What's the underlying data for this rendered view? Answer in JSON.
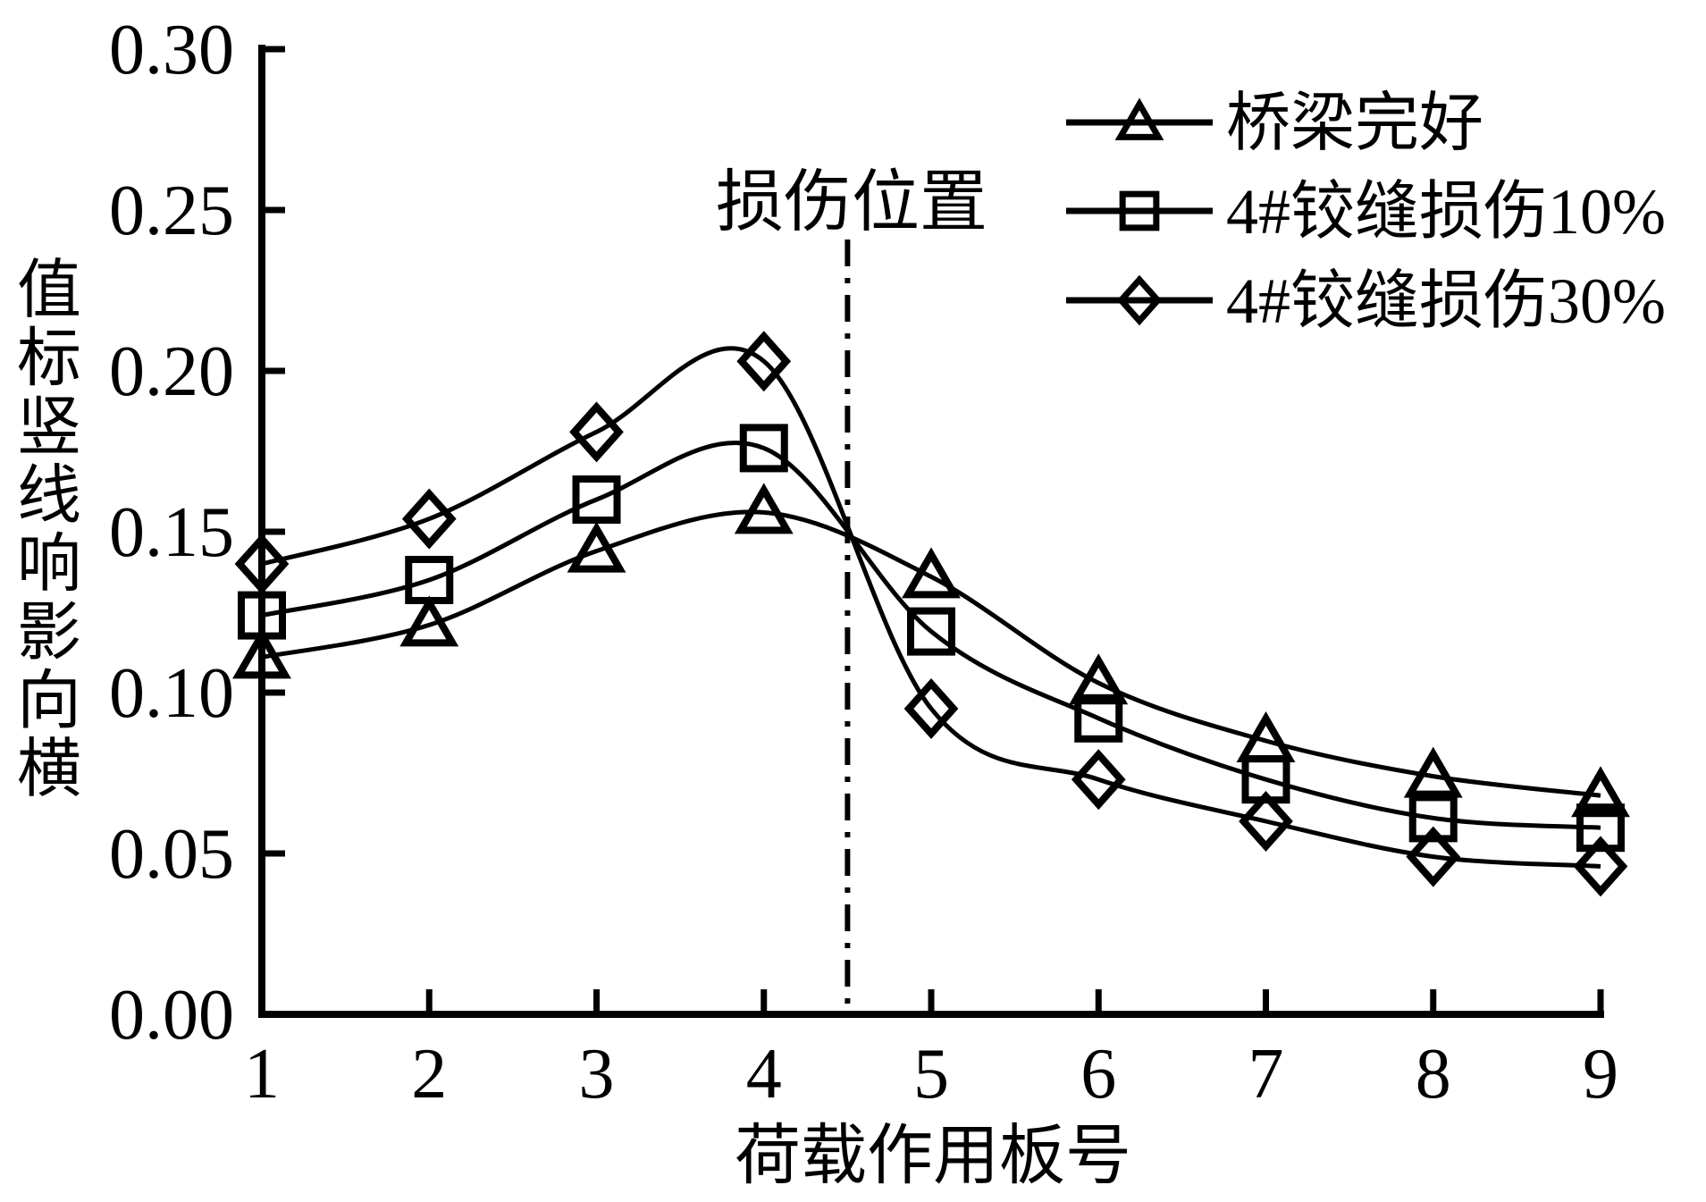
{
  "figure": {
    "background": "#ffffff",
    "ink": "#000000"
  },
  "chart_data": {
    "type": "line",
    "title": "",
    "xlabel": "荷载作用板号",
    "ylabel": "横向影响线竖标值",
    "x": [
      1,
      2,
      3,
      4,
      5,
      6,
      7,
      8,
      9
    ],
    "series": [
      {
        "key": "intact",
        "name": "桥梁完好",
        "marker": "triangle",
        "values": [
          0.111,
          0.121,
          0.144,
          0.156,
          0.136,
          0.103,
          0.085,
          0.074,
          0.068
        ]
      },
      {
        "key": "damage10",
        "name": "4#铰缝损伤10%",
        "marker": "square",
        "values": [
          0.124,
          0.135,
          0.16,
          0.176,
          0.119,
          0.092,
          0.073,
          0.061,
          0.058
        ]
      },
      {
        "key": "damage30",
        "name": "4#铰缝损伤30%",
        "marker": "diamond",
        "values": [
          0.14,
          0.154,
          0.181,
          0.203,
          0.095,
          0.073,
          0.06,
          0.049,
          0.046
        ]
      }
    ],
    "xlim": [
      1,
      9
    ],
    "ylim": [
      0.0,
      0.3
    ],
    "xticks": [
      1,
      2,
      3,
      4,
      5,
      6,
      7,
      8,
      9
    ],
    "xtick_labels": [
      "1",
      "2",
      "3",
      "4",
      "5",
      "6",
      "7",
      "8",
      "9"
    ],
    "yticks": [
      0.0,
      0.05,
      0.1,
      0.15,
      0.2,
      0.25,
      0.3
    ],
    "ytick_labels": [
      "0.00",
      "0.05",
      "0.10",
      "0.15",
      "0.20",
      "0.25",
      "0.30"
    ],
    "annotation": {
      "text": "损伤位置",
      "x": 4.5
    },
    "grid": false,
    "legend_position": "top-right",
    "curve_style": "smooth-spline",
    "line_color": "#000000",
    "marker_fill": "none"
  }
}
